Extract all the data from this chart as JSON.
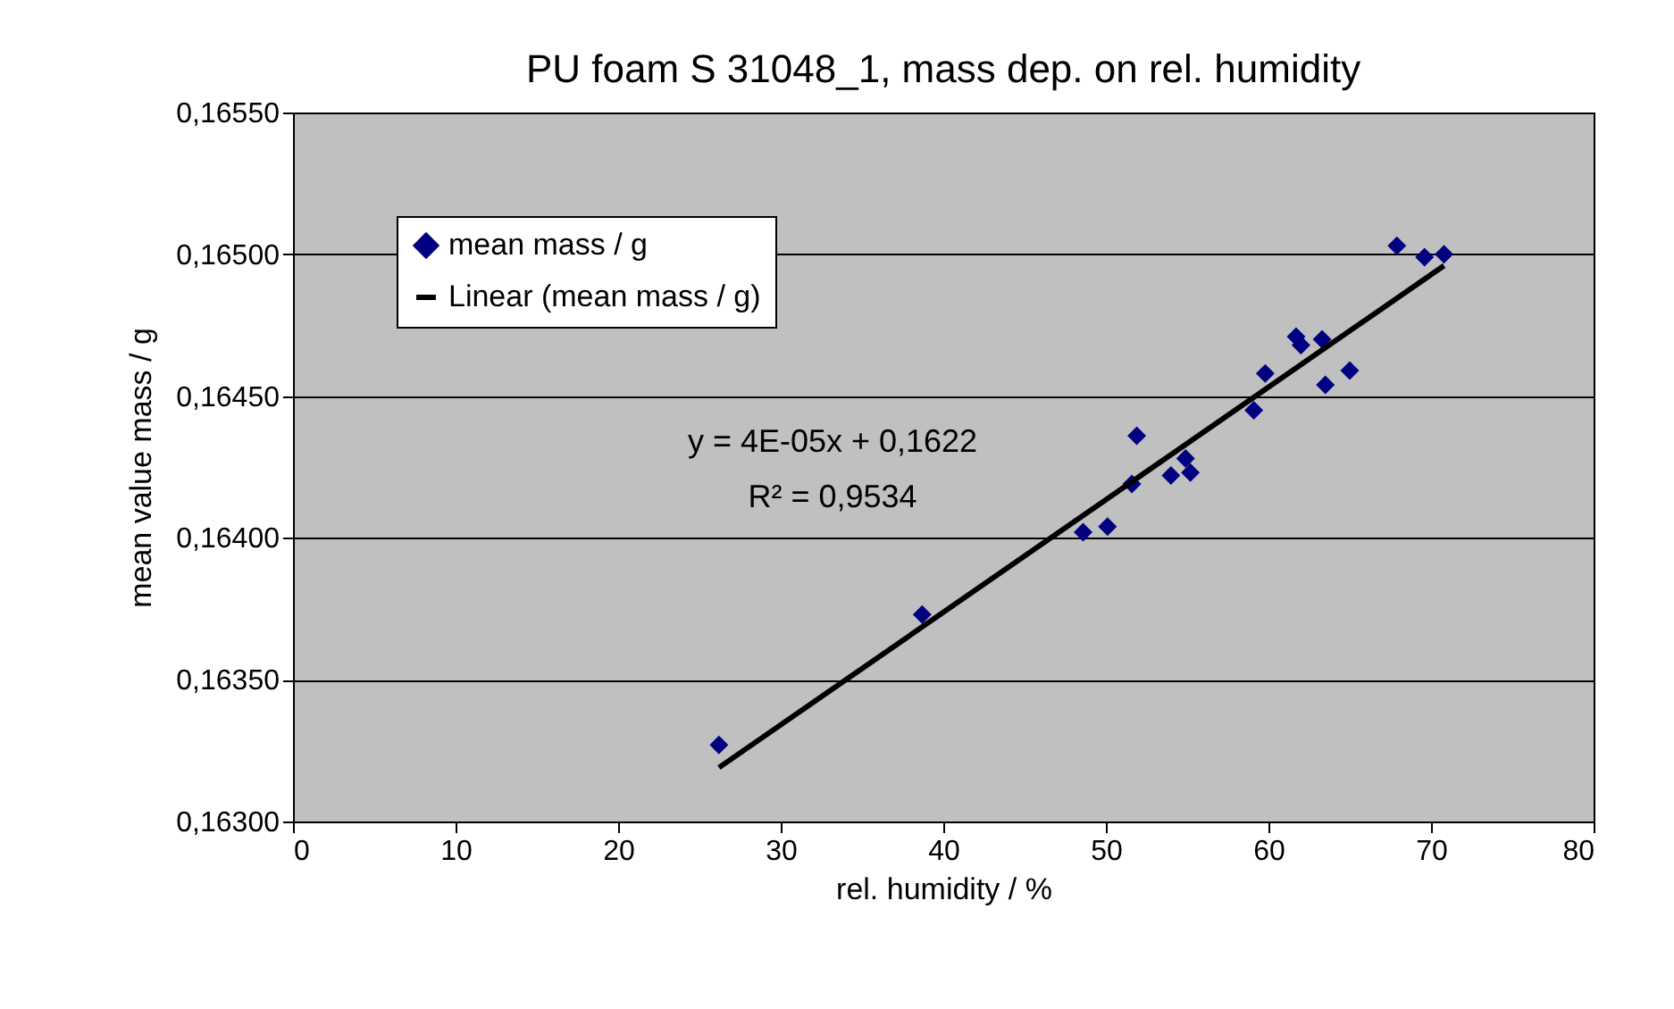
{
  "chart_data": {
    "type": "scatter",
    "title": "PU foam S 31048_1, mass dep. on rel. humidity",
    "xlabel": "rel. humidity / %",
    "ylabel": "mean value mass / g",
    "series": [
      {
        "name": "mean mass / g",
        "color": "#000080",
        "marker": "diamond",
        "x": [
          26.2,
          38.7,
          48.6,
          50.1,
          51.6,
          51.9,
          54.0,
          54.9,
          55.2,
          59.1,
          59.8,
          61.7,
          62.0,
          63.3,
          63.5,
          65.0,
          67.9,
          69.6,
          70.8
        ],
        "values": [
          0.16327,
          0.16373,
          0.16402,
          0.16404,
          0.16419,
          0.16436,
          0.16422,
          0.16428,
          0.16423,
          0.16445,
          0.16458,
          0.16471,
          0.16468,
          0.1647,
          0.16454,
          0.16459,
          0.16503,
          0.16499,
          0.165
        ]
      },
      {
        "name": "Linear (mean mass / g)",
        "type": "line",
        "color": "#000000",
        "line_style": "solid",
        "x": [
          26.2,
          70.8
        ],
        "values": [
          0.16319,
          0.16496
        ]
      }
    ],
    "annotations": [
      "y = 4E-05x + 0,1622",
      "R² = 0,9534"
    ],
    "xlim": [
      0,
      80
    ],
    "xticks": [
      0,
      10,
      20,
      30,
      40,
      50,
      60,
      70,
      80
    ],
    "ylim": [
      0.163,
      0.1655
    ],
    "yticks": [
      {
        "value": 0.163,
        "label": "0,16300"
      },
      {
        "value": 0.1635,
        "label": "0,16350"
      },
      {
        "value": 0.164,
        "label": "0,16400"
      },
      {
        "value": 0.1645,
        "label": "0,16450"
      },
      {
        "value": 0.165,
        "label": "0,16500"
      },
      {
        "value": 0.1655,
        "label": "0,16550"
      }
    ],
    "grid": "y",
    "legend": "top left"
  }
}
